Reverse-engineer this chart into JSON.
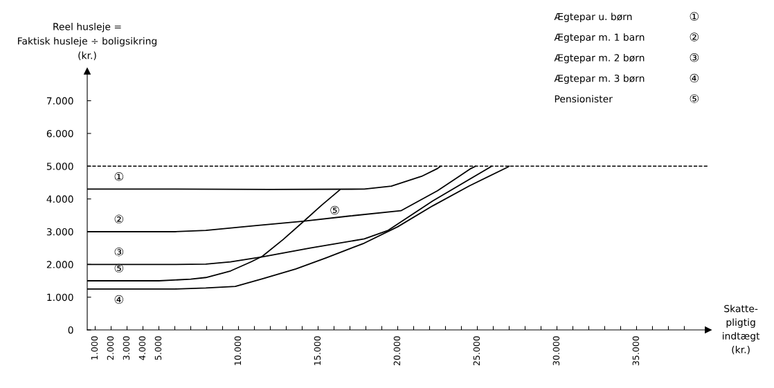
{
  "chart_data": {
    "type": "line",
    "ylabel": "Reel husleje =\nFaktisk husleje ÷ boligsikring\n(kr.)",
    "xlabel": "Skatte-\npligtig\nindtægt\n(kr.)",
    "xlim": [
      500,
      39500
    ],
    "ylim": [
      0,
      7900
    ],
    "xticks": [
      {
        "value": 1000,
        "label": "1.000"
      },
      {
        "value": 2000,
        "label": "2.000"
      },
      {
        "value": 3000,
        "label": "3.000"
      },
      {
        "value": 4000,
        "label": "4.000"
      },
      {
        "value": 5000,
        "label": "5.000"
      },
      {
        "value": 6000,
        "label": null
      },
      {
        "value": 7000,
        "label": null
      },
      {
        "value": 8000,
        "label": null
      },
      {
        "value": 9000,
        "label": null
      },
      {
        "value": 10000,
        "label": "10.000"
      },
      {
        "value": 11000,
        "label": null
      },
      {
        "value": 12000,
        "label": null
      },
      {
        "value": 13000,
        "label": null
      },
      {
        "value": 14000,
        "label": null
      },
      {
        "value": 15000,
        "label": "15.000"
      },
      {
        "value": 16000,
        "label": null
      },
      {
        "value": 17000,
        "label": null
      },
      {
        "value": 18000,
        "label": null
      },
      {
        "value": 19000,
        "label": null
      },
      {
        "value": 20000,
        "label": "20.000"
      },
      {
        "value": 21000,
        "label": null
      },
      {
        "value": 22000,
        "label": null
      },
      {
        "value": 23000,
        "label": null
      },
      {
        "value": 24000,
        "label": null
      },
      {
        "value": 25000,
        "label": "25.000"
      },
      {
        "value": 26000,
        "label": null
      },
      {
        "value": 27000,
        "label": null
      },
      {
        "value": 28000,
        "label": null
      },
      {
        "value": 29000,
        "label": null
      },
      {
        "value": 30000,
        "label": "30.000"
      },
      {
        "value": 31000,
        "label": null
      },
      {
        "value": 32000,
        "label": null
      },
      {
        "value": 33000,
        "label": null
      },
      {
        "value": 34000,
        "label": null
      },
      {
        "value": 35000,
        "label": "35.000"
      },
      {
        "value": 36000,
        "label": null
      },
      {
        "value": 37000,
        "label": null
      },
      {
        "value": 38000,
        "label": null
      }
    ],
    "yticks": [
      0,
      {
        "value": 1000,
        "label": "1.000"
      },
      {
        "value": 2000,
        "label": "2.000"
      },
      {
        "value": 3000,
        "label": "3.000"
      },
      {
        "value": 4000,
        "label": "4.000"
      },
      {
        "value": 5000,
        "label": "5.000"
      },
      {
        "value": 6000,
        "label": "6.000"
      },
      {
        "value": 7000,
        "label": "7.000"
      }
    ],
    "grid": false,
    "legend": "top right",
    "marker": "none",
    "line_style": "solid",
    "ref_lines": [
      {
        "axis": "y",
        "value": 5000,
        "line_style": "dashed",
        "color": "#000000"
      }
    ],
    "series": [
      {
        "name": "Ægtepar u. børn",
        "color": "#000000",
        "x": [
          500,
          6000,
          12000,
          17900,
          19600,
          21500,
          22500,
          22700
        ],
        "values": [
          4300,
          4300,
          4290,
          4300,
          4390,
          4690,
          4930,
          5000
        ]
      },
      {
        "name": "Ægtepar m. 1 barn",
        "color": "#000000",
        "x": [
          500,
          6000,
          7950,
          11000,
          14060,
          17000,
          20200,
          22500,
          24600,
          24900
        ],
        "values": [
          3000,
          3000,
          3040,
          3180,
          3320,
          3480,
          3640,
          4250,
          4930,
          5000
        ]
      },
      {
        "name": "Ægtepar m. 2 børn",
        "color": "#000000",
        "x": [
          500,
          6000,
          7950,
          9500,
          11500,
          14500,
          17900,
          19400,
          22200,
          25800,
          25900
        ],
        "values": [
          2000,
          2000,
          2010,
          2080,
          2230,
          2500,
          2780,
          3040,
          3940,
          4970,
          5000
        ]
      },
      {
        "name": "Ægtepar m. 3 børn",
        "color": "#000000",
        "x": [
          500,
          6000,
          7950,
          9800,
          11500,
          13600,
          15500,
          17900,
          20000,
          22200,
          24500,
          26900,
          27000
        ],
        "values": [
          1250,
          1250,
          1280,
          1330,
          1560,
          1860,
          2200,
          2650,
          3150,
          3790,
          4400,
          4970,
          5000
        ]
      },
      {
        "name": "Pensionister",
        "color": "#000000",
        "x": [
          500,
          5000,
          7000,
          7950,
          9500,
          10800,
          11500,
          12800,
          14060,
          15200,
          16370
        ],
        "values": [
          1500,
          1500,
          1550,
          1600,
          1800,
          2080,
          2250,
          2760,
          3300,
          3800,
          4280
        ]
      }
    ],
    "annotations": [
      "①",
      "②",
      "③",
      "④",
      "⑤",
      "⑤"
    ]
  }
}
